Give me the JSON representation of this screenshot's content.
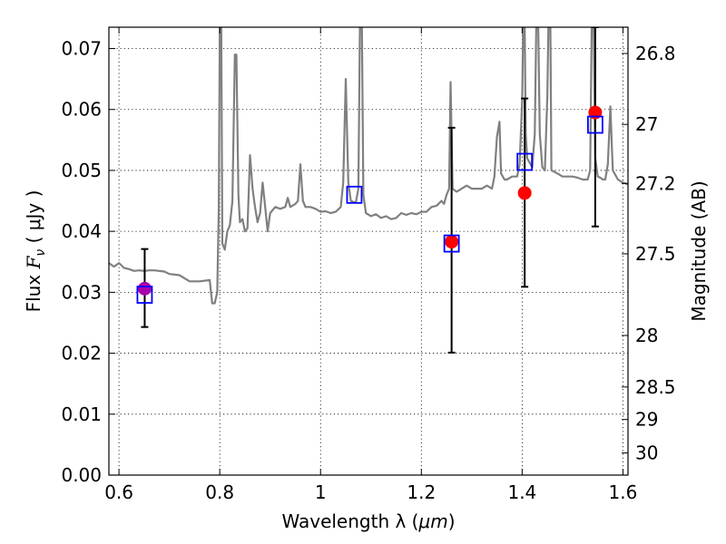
{
  "chart_data": {
    "type": "scatter",
    "xlabel_prefix": "Wavelength  λ (",
    "xlabel_unit": "μm",
    "xlabel_suffix": ")",
    "ylabel_prefix": "Flux  ",
    "ylabel_symbol": "F",
    "ylabel_sub": "ν",
    "ylabel_suffix": "  ( μJy )",
    "y2label": "Magnitude (AB)",
    "xlim": [
      0.58,
      1.61
    ],
    "ylim": [
      0.0,
      0.0735
    ],
    "grid": true,
    "x_ticks": [
      {
        "value": 0.6,
        "label": "0.6"
      },
      {
        "value": 0.8,
        "label": "0.8"
      },
      {
        "value": 1.0,
        "label": "1"
      },
      {
        "value": 1.2,
        "label": "1.2"
      },
      {
        "value": 1.4,
        "label": "1.4"
      },
      {
        "value": 1.6,
        "label": "1.6"
      }
    ],
    "y_ticks": [
      {
        "value": 0.0,
        "label": "0.00"
      },
      {
        "value": 0.01,
        "label": "0.01"
      },
      {
        "value": 0.02,
        "label": "0.02"
      },
      {
        "value": 0.03,
        "label": "0.03"
      },
      {
        "value": 0.04,
        "label": "0.04"
      },
      {
        "value": 0.05,
        "label": "0.05"
      },
      {
        "value": 0.06,
        "label": "0.06"
      },
      {
        "value": 0.07,
        "label": "0.07"
      }
    ],
    "y2_ticks": [
      {
        "value": 26.8,
        "label": "26.8"
      },
      {
        "value": 27.0,
        "label": "27"
      },
      {
        "value": 27.2,
        "label": "27.2"
      },
      {
        "value": 27.5,
        "label": "27.5"
      },
      {
        "value": 28.0,
        "label": "28"
      },
      {
        "value": 28.5,
        "label": "28.5"
      },
      {
        "value": 29.0,
        "label": "29"
      },
      {
        "value": 30.0,
        "label": "30"
      }
    ],
    "colors": {
      "model": "#808080",
      "observed": "#ff0000",
      "observed_first": "#aa00aa",
      "model_box": "#0000ff",
      "errorbar": "#000000"
    },
    "observed": [
      {
        "x": 0.651,
        "y": 0.0306,
        "yerr_low": 0.0243,
        "yerr_high": 0.0371
      },
      {
        "x": 1.26,
        "y": 0.0383,
        "yerr_low": 0.0201,
        "yerr_high": 0.057
      },
      {
        "x": 1.405,
        "y": 0.0463,
        "yerr_low": 0.0309,
        "yerr_high": 0.0618
      },
      {
        "x": 1.545,
        "y": 0.0595,
        "yerr_low": 0.0408,
        "yerr_high": 0.0735
      }
    ],
    "model_bandpass": [
      {
        "x": 0.651,
        "y": 0.0296
      },
      {
        "x": 1.067,
        "y": 0.046
      },
      {
        "x": 1.26,
        "y": 0.038
      },
      {
        "x": 1.405,
        "y": 0.0514
      },
      {
        "x": 1.545,
        "y": 0.0575
      }
    ],
    "sed_curve": [
      [
        0.58,
        0.0348
      ],
      [
        0.59,
        0.0342
      ],
      [
        0.6,
        0.0348
      ],
      [
        0.61,
        0.034
      ],
      [
        0.62,
        0.0338
      ],
      [
        0.63,
        0.0335
      ],
      [
        0.64,
        0.0336
      ],
      [
        0.65,
        0.0335
      ],
      [
        0.66,
        0.0336
      ],
      [
        0.67,
        0.0336
      ],
      [
        0.69,
        0.0334
      ],
      [
        0.7,
        0.033
      ],
      [
        0.72,
        0.0328
      ],
      [
        0.74,
        0.0318
      ],
      [
        0.76,
        0.0318
      ],
      [
        0.78,
        0.032
      ],
      [
        0.785,
        0.0282
      ],
      [
        0.79,
        0.0282
      ],
      [
        0.795,
        0.03
      ],
      [
        0.798,
        0.044
      ],
      [
        0.8,
        0.0735
      ],
      [
        0.803,
        0.0735
      ],
      [
        0.805,
        0.038
      ],
      [
        0.81,
        0.037
      ],
      [
        0.815,
        0.04
      ],
      [
        0.82,
        0.041
      ],
      [
        0.825,
        0.045
      ],
      [
        0.83,
        0.069
      ],
      [
        0.833,
        0.069
      ],
      [
        0.837,
        0.046
      ],
      [
        0.84,
        0.0415
      ],
      [
        0.845,
        0.042
      ],
      [
        0.85,
        0.04
      ],
      [
        0.855,
        0.0405
      ],
      [
        0.86,
        0.0525
      ],
      [
        0.865,
        0.047
      ],
      [
        0.87,
        0.044
      ],
      [
        0.875,
        0.0415
      ],
      [
        0.88,
        0.043
      ],
      [
        0.885,
        0.048
      ],
      [
        0.89,
        0.044
      ],
      [
        0.895,
        0.04
      ],
      [
        0.9,
        0.043
      ],
      [
        0.91,
        0.044
      ],
      [
        0.92,
        0.0437
      ],
      [
        0.93,
        0.044
      ],
      [
        0.935,
        0.0455
      ],
      [
        0.94,
        0.044
      ],
      [
        0.95,
        0.0445
      ],
      [
        0.955,
        0.045
      ],
      [
        0.96,
        0.051
      ],
      [
        0.965,
        0.045
      ],
      [
        0.97,
        0.044
      ],
      [
        0.98,
        0.044
      ],
      [
        0.99,
        0.0437
      ],
      [
        1.0,
        0.0432
      ],
      [
        1.01,
        0.0433
      ],
      [
        1.02,
        0.043
      ],
      [
        1.03,
        0.0432
      ],
      [
        1.04,
        0.044
      ],
      [
        1.045,
        0.048
      ],
      [
        1.05,
        0.065
      ],
      [
        1.055,
        0.048
      ],
      [
        1.06,
        0.045
      ],
      [
        1.07,
        0.0447
      ],
      [
        1.075,
        0.047
      ],
      [
        1.078,
        0.0735
      ],
      [
        1.082,
        0.0735
      ],
      [
        1.085,
        0.046
      ],
      [
        1.09,
        0.043
      ],
      [
        1.1,
        0.0425
      ],
      [
        1.11,
        0.0428
      ],
      [
        1.12,
        0.0422
      ],
      [
        1.13,
        0.0425
      ],
      [
        1.14,
        0.042
      ],
      [
        1.15,
        0.0422
      ],
      [
        1.16,
        0.043
      ],
      [
        1.17,
        0.0427
      ],
      [
        1.18,
        0.043
      ],
      [
        1.19,
        0.0428
      ],
      [
        1.2,
        0.0432
      ],
      [
        1.21,
        0.0432
      ],
      [
        1.22,
        0.044
      ],
      [
        1.23,
        0.0442
      ],
      [
        1.24,
        0.045
      ],
      [
        1.245,
        0.0445
      ],
      [
        1.25,
        0.046
      ],
      [
        1.255,
        0.047
      ],
      [
        1.258,
        0.0645
      ],
      [
        1.262,
        0.047
      ],
      [
        1.27,
        0.0465
      ],
      [
        1.28,
        0.047
      ],
      [
        1.29,
        0.0475
      ],
      [
        1.3,
        0.047
      ],
      [
        1.31,
        0.047
      ],
      [
        1.32,
        0.047
      ],
      [
        1.33,
        0.0475
      ],
      [
        1.34,
        0.047
      ],
      [
        1.345,
        0.049
      ],
      [
        1.35,
        0.0555
      ],
      [
        1.355,
        0.058
      ],
      [
        1.358,
        0.0495
      ],
      [
        1.365,
        0.0485
      ],
      [
        1.37,
        0.0485
      ],
      [
        1.38,
        0.049
      ],
      [
        1.39,
        0.049
      ],
      [
        1.395,
        0.051
      ],
      [
        1.4,
        0.0615
      ],
      [
        1.402,
        0.0735
      ],
      [
        1.405,
        0.0735
      ],
      [
        1.407,
        0.056
      ],
      [
        1.41,
        0.052
      ],
      [
        1.42,
        0.0505
      ],
      [
        1.425,
        0.056
      ],
      [
        1.428,
        0.0735
      ],
      [
        1.432,
        0.0735
      ],
      [
        1.435,
        0.056
      ],
      [
        1.44,
        0.0505
      ],
      [
        1.445,
        0.05
      ],
      [
        1.45,
        0.062
      ],
      [
        1.452,
        0.0735
      ],
      [
        1.456,
        0.0735
      ],
      [
        1.458,
        0.05
      ],
      [
        1.47,
        0.0495
      ],
      [
        1.48,
        0.049
      ],
      [
        1.49,
        0.049
      ],
      [
        1.5,
        0.049
      ],
      [
        1.51,
        0.0488
      ],
      [
        1.52,
        0.0485
      ],
      [
        1.53,
        0.0485
      ],
      [
        1.535,
        0.05
      ],
      [
        1.538,
        0.0735
      ],
      [
        1.542,
        0.0735
      ],
      [
        1.545,
        0.052
      ],
      [
        1.55,
        0.049
      ],
      [
        1.555,
        0.0488
      ],
      [
        1.56,
        0.0485
      ],
      [
        1.565,
        0.0485
      ],
      [
        1.57,
        0.051
      ],
      [
        1.575,
        0.0605
      ],
      [
        1.578,
        0.054
      ],
      [
        1.58,
        0.05
      ],
      [
        1.59,
        0.0485
      ],
      [
        1.6,
        0.048
      ],
      [
        1.61,
        0.0477
      ]
    ]
  }
}
